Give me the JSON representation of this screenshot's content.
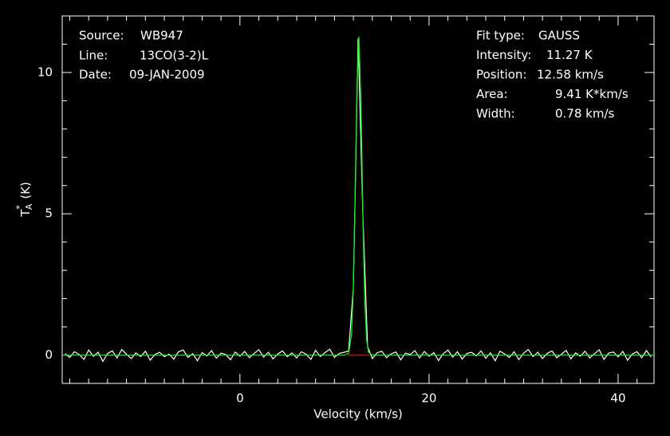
{
  "chart_data": {
    "type": "line",
    "xlabel": "Velocity (km/s)",
    "ylabel": {
      "base": "T",
      "sub": "A",
      "sup": "*",
      "unit": "(K)"
    },
    "xlim": [
      -18.8,
      43.8
    ],
    "ylim": [
      -1,
      12
    ],
    "xticks": [
      0,
      20,
      40
    ],
    "yticks": [
      0,
      5,
      10
    ],
    "xminorticks": [
      -18,
      -16,
      -14,
      -12,
      -10,
      -8,
      -6,
      -4,
      -2,
      2,
      4,
      6,
      8,
      10,
      12,
      14,
      16,
      18,
      22,
      24,
      26,
      28,
      30,
      32,
      34,
      36,
      38,
      42
    ],
    "yminorticks": [
      -1,
      1,
      2,
      3,
      4,
      6,
      7,
      8,
      9,
      11
    ],
    "background": "#000000",
    "axis_color": "#ffffff",
    "annotations_left": [
      {
        "label": "Source:",
        "value": "WB947"
      },
      {
        "label": "Line:",
        "value": "13CO(3-2)L"
      },
      {
        "label": "Date:",
        "value": "09-JAN-2009"
      }
    ],
    "annotations_right": [
      {
        "label": "Fit type:",
        "value": "GAUSS"
      },
      {
        "label": "Intensity:",
        "value": "11.27 K"
      },
      {
        "label": "Position:",
        "value": "12.58 km/s"
      },
      {
        "label": "Area:",
        "value": "9.41 K*km/s"
      },
      {
        "label": "Width:",
        "value": "0.78 km/s"
      }
    ],
    "series": [
      {
        "color": "#ffffff",
        "x": [
          -18.5,
          -18,
          -17.5,
          -17,
          -16.5,
          -16,
          -15.5,
          -15,
          -14.5,
          -14,
          -13.5,
          -13,
          -12.5,
          -12,
          -11.5,
          -11,
          -10.5,
          -10,
          -9.5,
          -9,
          -8.5,
          -8,
          -7.5,
          -7,
          -6.5,
          -6,
          -5.5,
          -5,
          -4.5,
          -4,
          -3.5,
          -3,
          -2.5,
          -2,
          -1.5,
          -1,
          -0.5,
          0,
          0.5,
          1,
          1.5,
          2,
          2.5,
          3,
          3.5,
          4,
          4.5,
          5,
          5.5,
          6,
          6.5,
          7,
          7.5,
          8,
          8.5,
          9,
          9.5,
          10,
          10.5,
          11,
          11.5,
          12,
          12.5,
          13,
          13.5,
          14,
          14.5,
          15,
          15.5,
          16,
          16.5,
          17,
          17.5,
          18,
          18.5,
          19,
          19.5,
          20,
          20.5,
          21,
          21.5,
          22,
          22.5,
          23,
          23.5,
          24,
          24.5,
          25,
          25.5,
          26,
          26.5,
          27,
          27.5,
          28,
          28.5,
          29,
          29.5,
          30,
          30.5,
          31,
          31.5,
          32,
          32.5,
          33,
          33.5,
          34,
          34.5,
          35,
          35.5,
          36,
          36.5,
          37,
          37.5,
          38,
          38.5,
          39,
          39.5,
          40,
          40.5,
          41,
          41.5,
          42,
          42.5,
          43,
          43.5
        ],
        "values": [
          0.05,
          -0.08,
          0.12,
          0.02,
          -0.15,
          0.18,
          -0.04,
          0.1,
          -0.22,
          0.06,
          0.15,
          -0.1,
          0.2,
          0.03,
          -0.12,
          0.08,
          -0.05,
          0.14,
          -0.18,
          0.02,
          0.1,
          -0.06,
          0.04,
          -0.14,
          0.12,
          0.18,
          -0.08,
          0.05,
          -0.2,
          0.09,
          -0.03,
          0.16,
          -0.11,
          0.07,
          0.02,
          -0.16,
          0.11,
          -0.04,
          0.13,
          -0.09,
          0.06,
          0.19,
          -0.07,
          0.1,
          -0.13,
          0.04,
          0.15,
          -0.06,
          0.08,
          -0.1,
          0.12,
          0.03,
          -0.15,
          0.17,
          -0.05,
          0.09,
          0.21,
          -0.08,
          0.06,
          0.1,
          0.15,
          2.4,
          11.2,
          5.0,
          0.3,
          -0.12,
          0.08,
          0.14,
          -0.09,
          0.05,
          0.11,
          -0.17,
          0.07,
          0.02,
          0.16,
          -0.1,
          0.13,
          -0.04,
          0.09,
          -0.19,
          0.05,
          0.18,
          -0.07,
          0.12,
          -0.14,
          0.06,
          0.1,
          -0.03,
          0.15,
          -0.11,
          0.08,
          -0.2,
          0.14,
          0.04,
          -0.08,
          0.12,
          -0.16,
          0.07,
          0.2,
          -0.05,
          0.1,
          -0.12,
          0.06,
          0.15,
          -0.09,
          0.03,
          0.17,
          -0.13,
          0.08,
          -0.04,
          0.14,
          -0.1,
          0.05,
          0.19,
          -0.15,
          0.07,
          0.11,
          -0.06,
          0.13,
          -0.18,
          0.04,
          0.12,
          -0.09,
          0.16,
          -0.07
        ]
      },
      {
        "color": "#ff0000",
        "x": [
          11.4,
          13.7
        ],
        "values": [
          0,
          0
        ]
      },
      {
        "color": "#00ff00",
        "x": [
          -18.8,
          11.0,
          11.5,
          11.8,
          12.0,
          12.2,
          12.4,
          12.58,
          12.8,
          13.0,
          13.2,
          13.4,
          13.6,
          14.0,
          43.8
        ],
        "values": [
          0,
          0,
          0.06,
          0.71,
          2.44,
          5.84,
          9.72,
          11.27,
          9.04,
          5.04,
          1.96,
          0.53,
          0.1,
          0,
          0
        ]
      }
    ]
  }
}
